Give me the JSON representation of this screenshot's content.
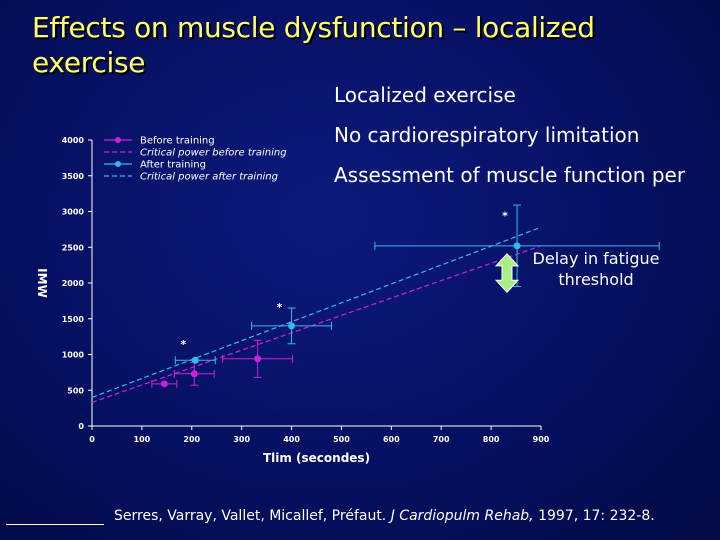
{
  "slide": {
    "title": "Effects on muscle dysfunction – localized exercise",
    "bullets": [
      "Localized exercise",
      "No cardiorespiratory limitation",
      "Assessment of muscle function per"
    ],
    "annotation": "Delay in fatigue threshold",
    "citation_authors": "Serres, Varray, Vallet, Micallef, Préfaut.",
    "citation_journal": "J Cardiopulm Rehab,",
    "citation_details": "1997, 17: 232-8."
  },
  "colors": {
    "background": "#061062",
    "title": "#ffff66",
    "text": "#ffffff",
    "before": "#cc22dd",
    "after": "#33bbee",
    "arrow": "#aaee88",
    "axis": "#ffffff"
  },
  "chart_data": {
    "type": "scatter",
    "xlabel": "Tlim (secondes)",
    "ylabel": "IMW",
    "xlim": [
      0,
      900
    ],
    "ylim": [
      0,
      4000
    ],
    "xticks": [
      "0",
      "100",
      "200",
      "300",
      "400",
      "500",
      "600",
      "700",
      "800",
      "900"
    ],
    "yticks": [
      "0",
      "500",
      "1000",
      "1500",
      "2000",
      "2500",
      "3000",
      "3500",
      "4000"
    ],
    "legend_position": "top-left",
    "legend": [
      "Before training",
      "Critical power before training",
      "After training",
      "Critical power after training"
    ],
    "significance_marker": "*",
    "series": [
      {
        "name": "Before training",
        "color": "#cc22dd",
        "points": [
          {
            "x": 145,
            "y": 590,
            "xerr": 25,
            "yerr": 0
          },
          {
            "x": 205,
            "y": 730,
            "xerr": 40,
            "yerr": 160
          },
          {
            "x": 332,
            "y": 940,
            "xerr": 70,
            "yerr": 260
          }
        ],
        "fit_line": {
          "x": [
            0,
            900
          ],
          "y": [
            330,
            2520
          ]
        }
      },
      {
        "name": "After training",
        "color": "#33bbee",
        "points": [
          {
            "x": 207,
            "y": 920,
            "xerr": 40,
            "yerr": 0,
            "significant": true
          },
          {
            "x": 400,
            "y": 1400,
            "xerr": 80,
            "yerr": 250,
            "significant": true
          },
          {
            "x": 852,
            "y": 2520,
            "xerr": 285,
            "yerr": 570,
            "significant": true
          }
        ],
        "fit_line": {
          "x": [
            0,
            900
          ],
          "y": [
            400,
            2780
          ]
        }
      }
    ]
  }
}
